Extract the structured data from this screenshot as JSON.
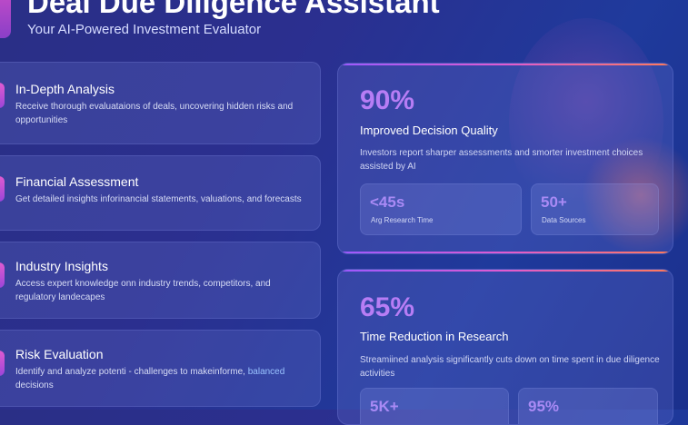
{
  "header": {
    "title": "Deal Due Diligence Assistant",
    "subtitle": "Your AI-Powered Investment Evaluator"
  },
  "features": [
    {
      "title": "In-Depth Analysis",
      "desc": "Receive thorough evaluataions of  deals, uncovering hidden risks and opportunities"
    },
    {
      "title": "Financial Assessment",
      "desc": "Get detailed insights inforinancial statements, valuations, and forecasts"
    },
    {
      "title": "Industry Insights",
      "desc": "Access expert knowledge onn industry trends, competitors, and regulatory landecapes"
    },
    {
      "title": "Risk Evaluation",
      "desc_a": "Identify and analyze potenti  - challenges   to makeinforme,",
      "desc_b": "balanced",
      "desc_c": "decisions"
    }
  ],
  "stats": [
    {
      "value": "90%",
      "label": "Improved Decision Quality",
      "desc": "Investors report sharper assessments and smorter investment choices assisted by AI",
      "minis": [
        {
          "value": "<45s",
          "label": "Arg Research Time"
        },
        {
          "value": "50+",
          "label": "Data Sources"
        }
      ]
    },
    {
      "value": "65%",
      "label": "Time Reduction in Research",
      "desc": "Streamiined analysis significantly cuts down on time spent in due diligence activities",
      "minis": [
        {
          "value": "5K+",
          "label": ""
        },
        {
          "value": "95%",
          "label": ""
        }
      ]
    }
  ],
  "colors": {
    "accent": "#b77df5",
    "link": "#9ac3ff"
  }
}
